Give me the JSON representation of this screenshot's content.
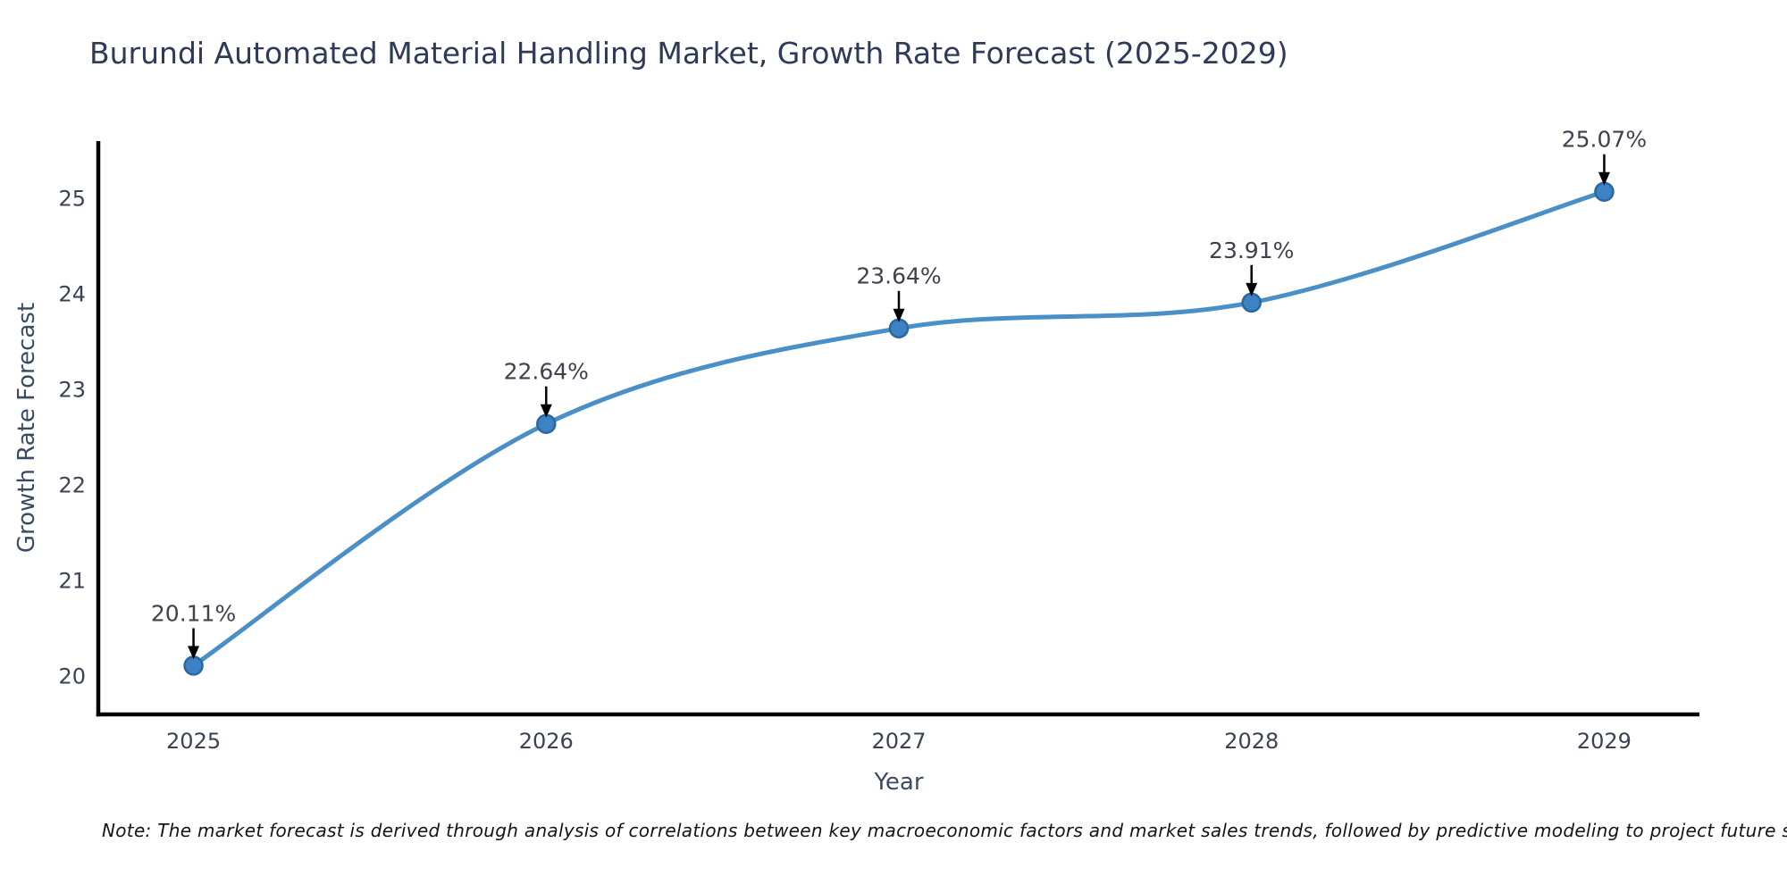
{
  "note": "Note: The market forecast is derived through analysis of correlations between key macroeconomic factors and market sales trends, followed by predictive modeling to project future sales",
  "chart_data": {
    "type": "line",
    "title": "Burundi Automated Material Handling Market, Growth Rate Forecast (2025-2029)",
    "x": [
      2025,
      2026,
      2027,
      2028,
      2029
    ],
    "values": [
      20.11,
      22.64,
      23.64,
      23.91,
      25.07
    ],
    "point_labels": [
      "20.11%",
      "22.64%",
      "23.64%",
      "23.91%",
      "25.07%"
    ],
    "xlabel": "Year",
    "ylabel": "Growth Rate Forecast",
    "x_tick_labels": [
      "2025",
      "2026",
      "2027",
      "2028",
      "2029"
    ],
    "y_ticks": [
      20,
      21,
      22,
      23,
      24,
      25
    ],
    "xlim": [
      2024.73,
      2029.27
    ],
    "ylim": [
      19.6,
      25.6
    ],
    "grid": false,
    "legend": "none",
    "smoothed_line": true,
    "annotation_arrows": true,
    "colors": {
      "line": "#4a8fc6",
      "marker_fill": "#3d82c4",
      "marker_edge": "#2a689e",
      "arrow": "#000000",
      "spine": "#000000",
      "title_text": "#2e3a59",
      "tick_text": "#3a4354",
      "axis_label_text": "#3b4a63",
      "annotation_text": "#3f414e"
    }
  }
}
